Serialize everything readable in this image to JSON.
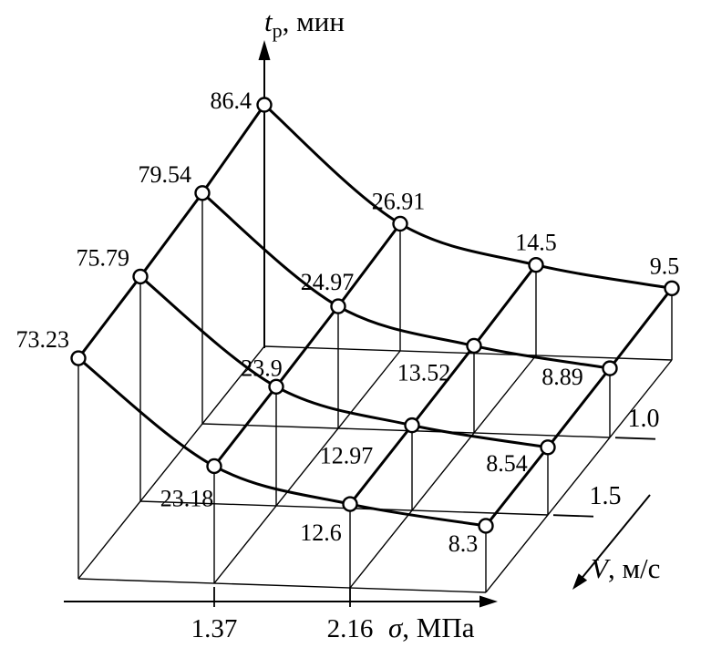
{
  "chart_data": {
    "type": "surface_3d_wireframe",
    "title": "",
    "z_axis": {
      "var": "t",
      "sub": "p",
      "units": ", мин"
    },
    "x_axis": {
      "var": "σ",
      "units": ", МПа",
      "tick_labels": [
        "1.37",
        "2.16"
      ]
    },
    "v_axis": {
      "var": "V",
      "units": ", м/с",
      "tick_labels": [
        "1.0",
        "1.5"
      ]
    },
    "grid": {
      "v_rows": 4,
      "sigma_columns": 4,
      "legend": "none",
      "gridlines": "base-parallelogram-mesh"
    },
    "values": [
      [
        86.4,
        26.91,
        14.5,
        9.5
      ],
      [
        79.54,
        24.97,
        13.52,
        8.89
      ],
      [
        75.79,
        23.9,
        12.97,
        8.54
      ],
      [
        73.23,
        23.18,
        12.6,
        8.3
      ]
    ],
    "colors": {
      "ink": "#000000",
      "point_fill": "#ffffff"
    }
  }
}
